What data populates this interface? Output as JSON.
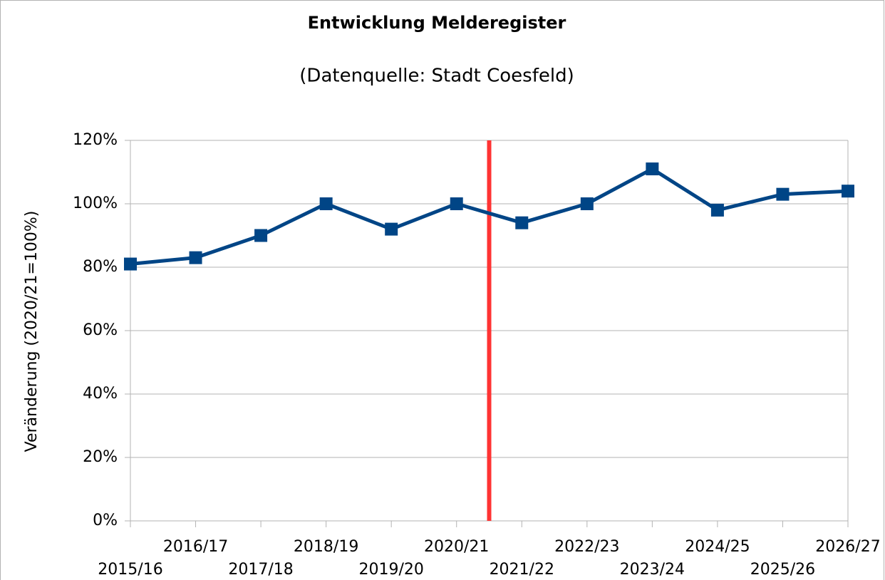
{
  "chart_data": {
    "type": "line",
    "title": "Entwicklung Melderegister",
    "subtitle": "(Datenquelle: Stadt Coesfeld)",
    "y_label": "Veränderung (2020/21=100%)",
    "categories": [
      "2015/16",
      "2016/17",
      "2017/18",
      "2018/19",
      "2019/20",
      "2020/21",
      "2021/22",
      "2022/23",
      "2023/24",
      "2024/25",
      "2025/26",
      "2026/27"
    ],
    "values": [
      81,
      83,
      90,
      100,
      92,
      100,
      94,
      100,
      111,
      98,
      103,
      104
    ],
    "color": "#004586",
    "ylim": [
      0,
      120
    ],
    "yticks": [
      {
        "value": 0,
        "label": "0%"
      },
      {
        "value": 20,
        "label": "20%"
      },
      {
        "value": 40,
        "label": "40%"
      },
      {
        "value": 60,
        "label": "60%"
      },
      {
        "value": 80,
        "label": "80%"
      },
      {
        "value": 100,
        "label": "100%"
      },
      {
        "value": 120,
        "label": "120%"
      }
    ],
    "grid": true
  }
}
